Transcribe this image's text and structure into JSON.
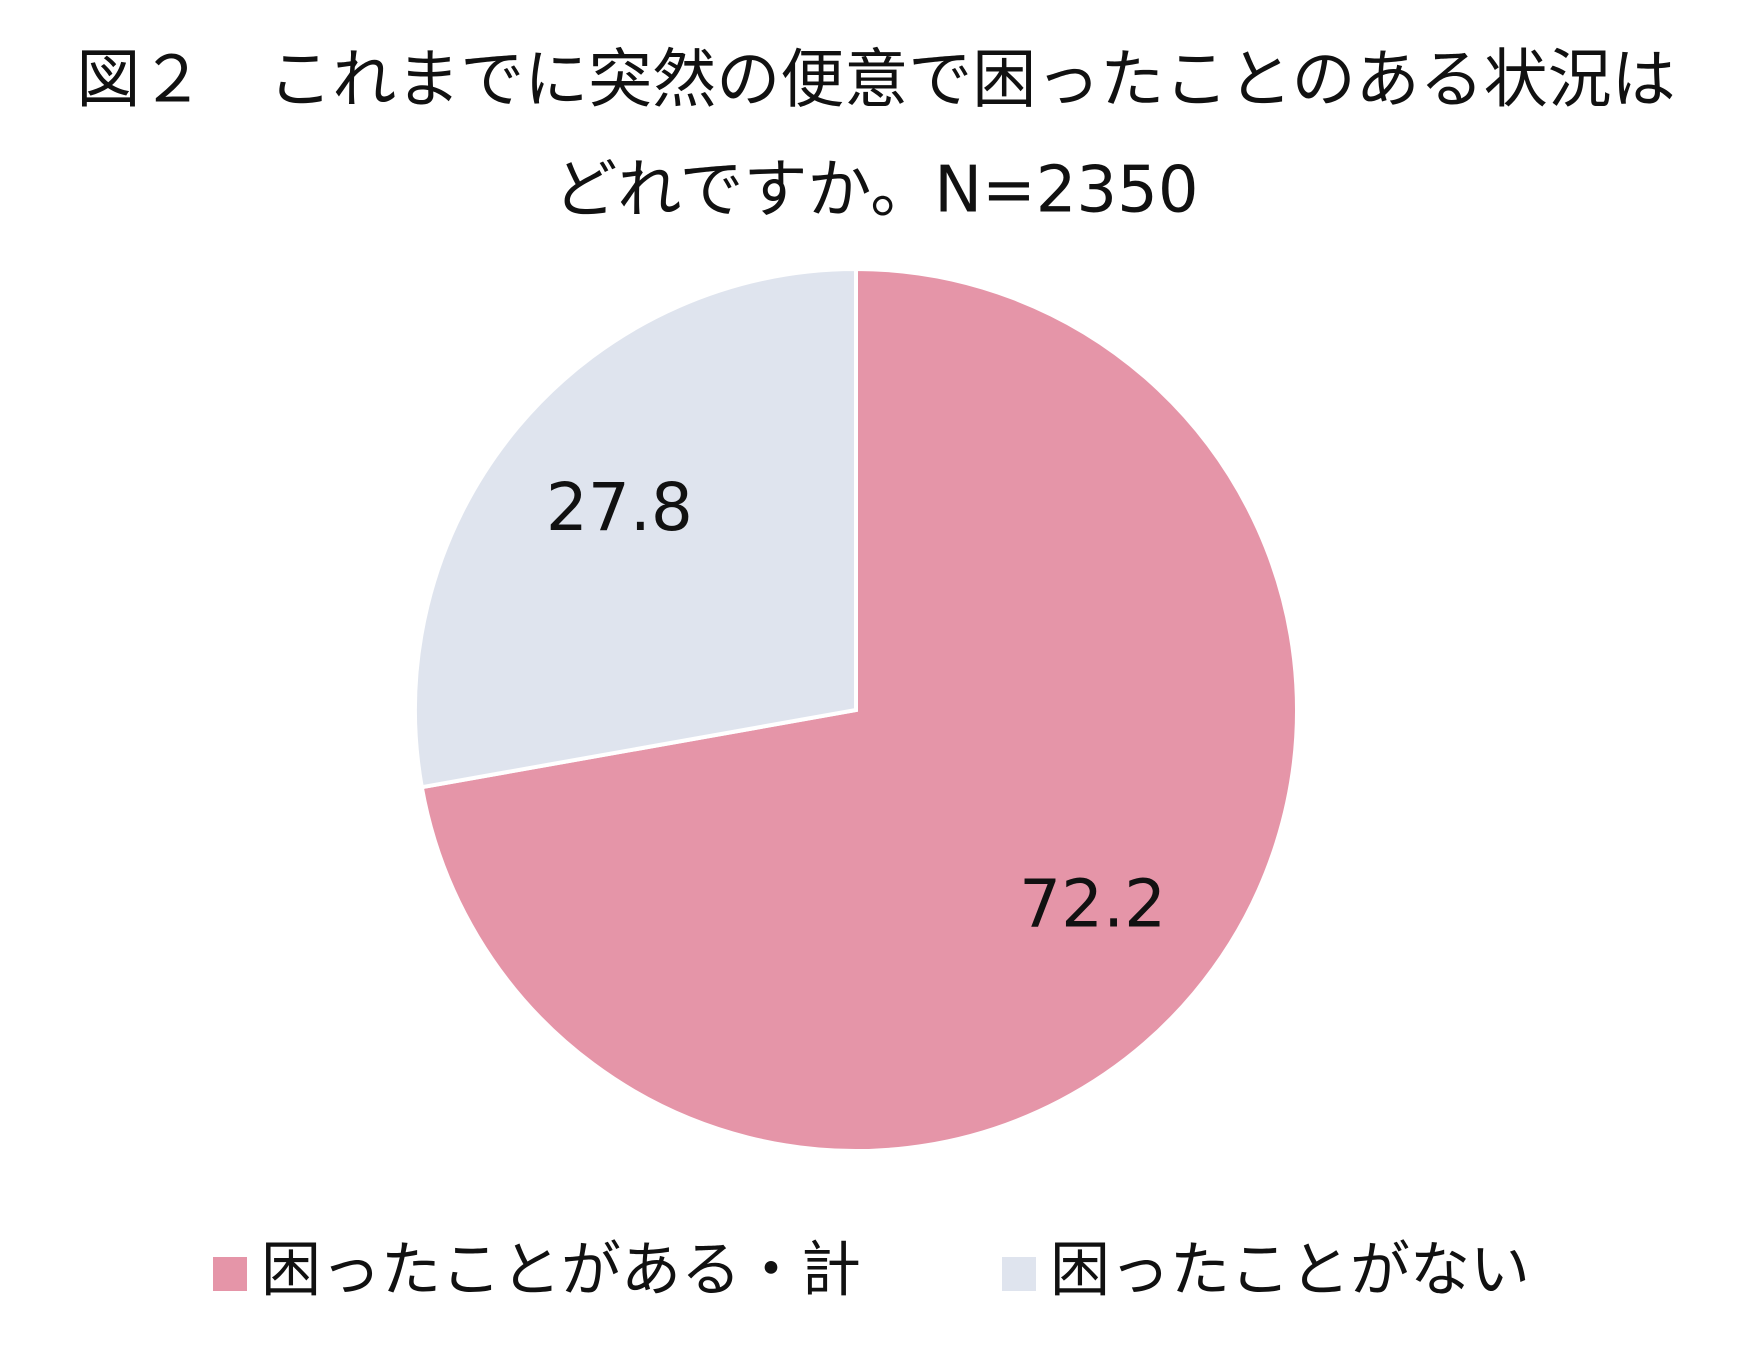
{
  "chart_data": {
    "type": "pie",
    "title": [
      "図２　これまでに突然の便意で困ったことのある状況は",
      "どれですか。N=2350"
    ],
    "categories": [
      "困ったことがある・計",
      "困ったことがない"
    ],
    "values": [
      72.2,
      27.8
    ],
    "colors": [
      "#e595a8",
      "#dfe4ee"
    ]
  }
}
